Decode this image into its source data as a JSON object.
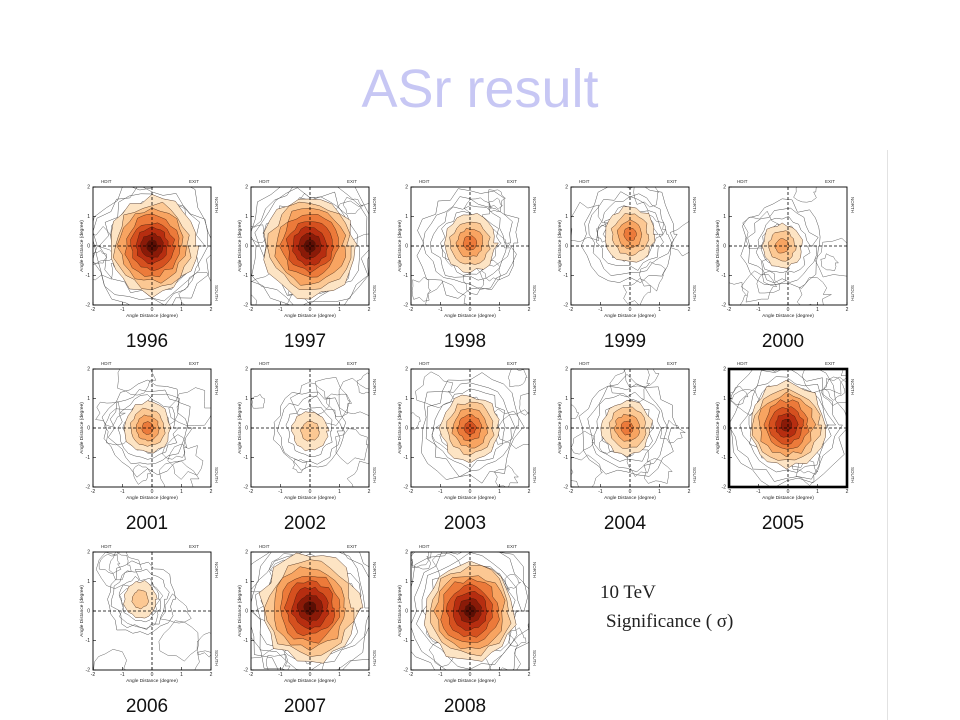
{
  "slide": {
    "title": "ASr result"
  },
  "plot_labels": {
    "x_axis": "Angle Distance (degree)",
    "y_axis": "Angle Distance (degree)",
    "top_left": "HDIT",
    "top_right": "EXIT",
    "side_north": "NORTH",
    "side_south": "SOUTH",
    "ticks": [
      "-2",
      "-1",
      "0",
      "1",
      "2"
    ]
  },
  "panels": [
    {
      "year": "1996",
      "peak": 1.0,
      "cx": 0.0,
      "cy": 0.0,
      "spread": 1.0,
      "highlight": false
    },
    {
      "year": "1997",
      "peak": 1.0,
      "cx": 0.0,
      "cy": 0.0,
      "spread": 1.05,
      "highlight": false
    },
    {
      "year": "1998",
      "peak": 0.45,
      "cx": 0.0,
      "cy": 0.1,
      "spread": 0.8,
      "highlight": false
    },
    {
      "year": "1999",
      "peak": 0.45,
      "cx": 0.0,
      "cy": 0.4,
      "spread": 0.75,
      "highlight": false
    },
    {
      "year": "2000",
      "peak": 0.35,
      "cx": -0.2,
      "cy": 0.0,
      "spread": 0.65,
      "highlight": false
    },
    {
      "year": "2001",
      "peak": 0.45,
      "cx": -0.15,
      "cy": 0.0,
      "spread": 0.7,
      "highlight": false
    },
    {
      "year": "2002",
      "peak": 0.3,
      "cx": 0.0,
      "cy": -0.1,
      "spread": 0.6,
      "highlight": false
    },
    {
      "year": "2003",
      "peak": 0.65,
      "cx": 0.0,
      "cy": 0.0,
      "spread": 0.8,
      "highlight": false
    },
    {
      "year": "2004",
      "peak": 0.45,
      "cx": -0.1,
      "cy": 0.0,
      "spread": 0.75,
      "highlight": false
    },
    {
      "year": "2005",
      "peak": 0.85,
      "cx": -0.05,
      "cy": 0.1,
      "spread": 0.95,
      "highlight": true
    },
    {
      "year": "2006",
      "peak": 0.3,
      "cx": -0.4,
      "cy": 0.4,
      "spread": 0.55,
      "highlight": false
    },
    {
      "year": "2007",
      "peak": 0.95,
      "cx": 0.0,
      "cy": 0.1,
      "spread": 1.15,
      "highlight": false
    },
    {
      "year": "2008",
      "peak": 1.0,
      "cx": 0.0,
      "cy": 0.0,
      "spread": 1.05,
      "highlight": false
    }
  ],
  "legend": {
    "energy": "10 TeV",
    "significance": "Significance ( σ)"
  },
  "colors": {
    "title": "#c7c7f4",
    "heat": [
      "#fde4c4",
      "#fcc893",
      "#f8a461",
      "#ec7a3a",
      "#d5501f",
      "#b62d10",
      "#8a1a08",
      "#5c0e04"
    ],
    "contour": "#555555"
  }
}
